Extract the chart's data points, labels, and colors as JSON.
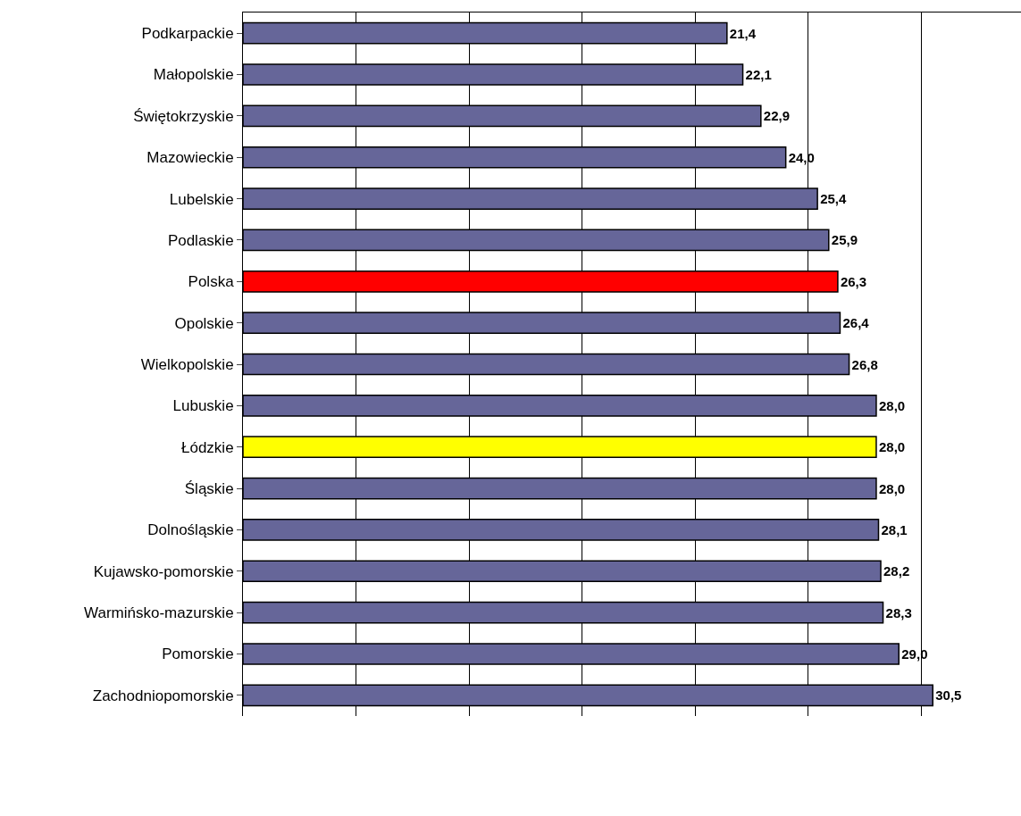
{
  "chart_data": {
    "type": "bar",
    "orientation": "horizontal",
    "categories": [
      "Podkarpackie",
      "Małopolskie",
      "Świętokrzyskie",
      "Mazowieckie",
      "Lubelskie",
      "Podlaskie",
      "Polska",
      "Opolskie",
      "Wielkopolskie",
      "Lubuskie",
      "Łódzkie",
      "Śląskie",
      "Dolnośląskie",
      "Kujawsko-pomorskie",
      "Warmińsko-mazurskie",
      "Pomorskie",
      "Zachodniopomorskie"
    ],
    "values": [
      21.4,
      22.1,
      22.9,
      24.0,
      25.4,
      25.9,
      26.3,
      26.4,
      26.8,
      28.0,
      28.0,
      28.0,
      28.1,
      28.2,
      28.3,
      29.0,
      30.5
    ],
    "value_labels": [
      "21,4",
      "22,1",
      "22,9",
      "24,0",
      "25,4",
      "25,9",
      "26,3",
      "26,4",
      "26,8",
      "28,0",
      "28,0",
      "28,0",
      "28,1",
      "28,2",
      "28,3",
      "29,0",
      "30,5"
    ],
    "colors": [
      "#666699",
      "#666699",
      "#666699",
      "#666699",
      "#666699",
      "#666699",
      "#ff0000",
      "#666699",
      "#666699",
      "#666699",
      "#ffff00",
      "#666699",
      "#666699",
      "#666699",
      "#666699",
      "#666699",
      "#666699"
    ],
    "xlim": [
      0,
      34.4
    ],
    "xticks": [
      {
        "value": 0,
        "label": null
      },
      {
        "value": 5,
        "label": null
      },
      {
        "value": 10,
        "label": null
      },
      {
        "value": 15,
        "label": null
      },
      {
        "value": 20,
        "label": null
      },
      {
        "value": 25,
        "label": null
      },
      {
        "value": 30,
        "label": null
      }
    ],
    "grid": "x",
    "tick_labels": "y"
  }
}
